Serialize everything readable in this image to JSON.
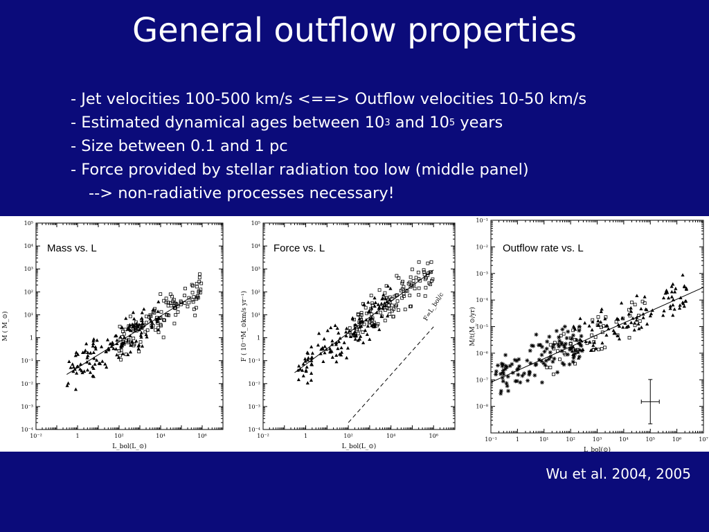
{
  "slide": {
    "title": "General outflow properties",
    "bullets": {
      "jet": "- Jet velocities 100-500 km/s  <==> Outflow velocities 10-50 km/s",
      "ages_pre": "- Estimated dynamical ages between 10",
      "ages_exp1": "3",
      "ages_mid": " and 10",
      "ages_exp2": "5",
      "ages_post": " years",
      "size": "- Size between 0.1 and 1 pc",
      "force": "- Force provided by stellar radiation too low (middle panel)",
      "conclusion": "--> non-radiative processes necessary!"
    },
    "citation": "Wu et al. 2004, 2005"
  },
  "chart_data": [
    {
      "type": "scatter",
      "title": "Mass vs. L",
      "xlabel": "L_bol(L_⊙)",
      "ylabel": "M ( M_⊙)",
      "xscale": "log",
      "yscale": "log",
      "xlim": [
        0.01,
        10000000.0
      ],
      "ylim": [
        0.0001,
        100000
      ],
      "x_ticks": [
        "10⁻²",
        "1",
        "10²",
        "10⁴",
        "10⁶"
      ],
      "y_ticks": [
        "10⁵",
        "10⁴",
        "10³",
        "10²",
        "10¹",
        "1",
        "10⁻¹",
        "10⁻²",
        "10⁻³",
        "10⁻⁴"
      ],
      "fit_line": {
        "x": [
          0.3,
          300000
        ],
        "y": [
          0.025,
          60
        ]
      },
      "series": [
        {
          "marker": "filled-triangle",
          "x_range": [
            0.3,
            10000
          ],
          "y_range": [
            0.001,
            40
          ],
          "count": 140
        },
        {
          "marker": "open-square",
          "x_range": [
            100,
            1000000
          ],
          "y_range": [
            0.1,
            900
          ],
          "count": 130
        }
      ]
    },
    {
      "type": "scatter",
      "title": "Force vs. L",
      "xlabel": "L_bol(L_⊙)",
      "ylabel": "F ( 10⁻⁴M_⊙km/s yr⁻¹)",
      "xscale": "log",
      "yscale": "log",
      "xlim": [
        0.01,
        10000000.0
      ],
      "ylim": [
        0.0001,
        100000
      ],
      "x_ticks": [
        "10⁻²",
        "1",
        "10²",
        "10⁴",
        "10⁶"
      ],
      "y_ticks": [
        "10⁵",
        "10⁴",
        "10³",
        "10²",
        "10¹",
        "1",
        "10⁻¹",
        "10⁻²",
        "10⁻³",
        "10⁻⁴"
      ],
      "fit_line": {
        "x": [
          0.3,
          1000000
        ],
        "y": [
          0.03,
          900
        ]
      },
      "radiation_line": {
        "label": "F=L_bol/c",
        "x": [
          100,
          1000000
        ],
        "y": [
          0.0002,
          3
        ]
      },
      "series": [
        {
          "marker": "filled-triangle",
          "x_range": [
            0.3,
            10000
          ],
          "y_range": [
            0.001,
            300
          ],
          "count": 130
        },
        {
          "marker": "open-square",
          "x_range": [
            100,
            1000000
          ],
          "y_range": [
            0.1,
            2000
          ],
          "count": 120
        }
      ]
    },
    {
      "type": "scatter",
      "title": "Outflow rate vs. L",
      "xlabel": "L_bol(⊙)",
      "ylabel": "M/t(M_⊙/yr)",
      "xscale": "log",
      "yscale": "log",
      "xlim": [
        0.1,
        10000000
      ],
      "ylim": [
        1e-08,
        1
      ],
      "x_ticks": [
        "10⁻¹",
        "1",
        "10¹",
        "10²",
        "10³",
        "10⁴",
        "10⁵",
        "10⁶",
        "10⁷"
      ],
      "y_ticks": [
        "10⁻¹",
        "10⁻²",
        "10⁻³",
        "10⁻⁴",
        "10⁻⁵",
        "10⁻⁶",
        "10⁻⁷",
        "10⁻⁸"
      ],
      "fit_line": {
        "x": [
          0.1,
          10000000
        ],
        "y": [
          8e-07,
          0.003
        ]
      },
      "error_bar": {
        "x": 100000,
        "y": 1.5e-07
      },
      "series": [
        {
          "marker": "asterisk",
          "x_range": [
            0.15,
            300
          ],
          "y_range": [
            1e-08,
            0.0001
          ],
          "count": 110
        },
        {
          "marker": "filled-triangle",
          "x_range": [
            100,
            3000000
          ],
          "y_range": [
            3e-06,
            0.08
          ],
          "count": 110
        },
        {
          "marker": "open-square",
          "x_range": [
            10,
            100000
          ],
          "y_range": [
            1e-06,
            0.001
          ],
          "count": 50
        }
      ]
    }
  ]
}
